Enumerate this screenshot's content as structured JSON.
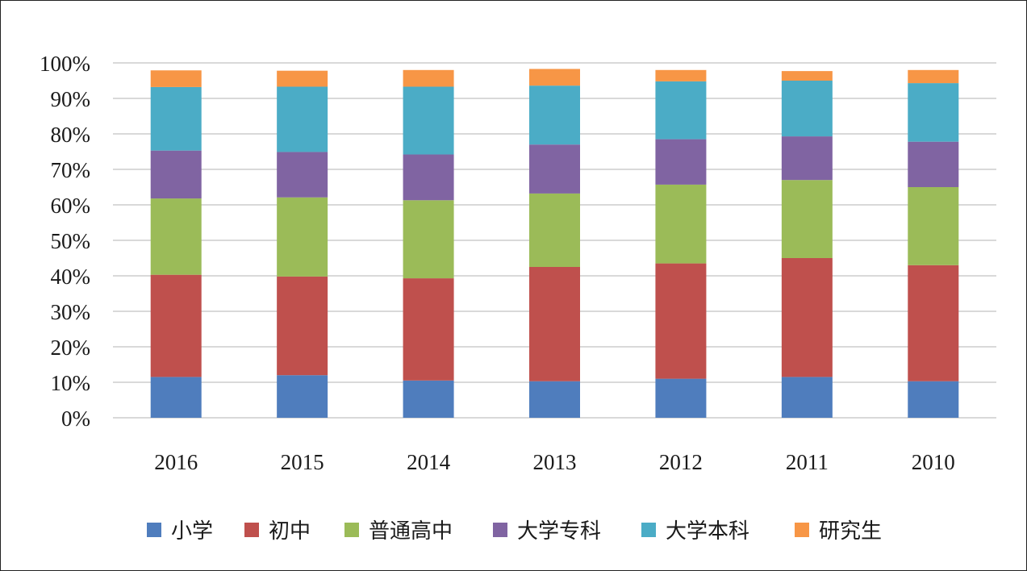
{
  "chart_data": {
    "type": "bar",
    "stacked": true,
    "categories": [
      "2016",
      "2015",
      "2014",
      "2013",
      "2012",
      "2011",
      "2010"
    ],
    "yticks": [
      "0%",
      "10%",
      "20%",
      "30%",
      "40%",
      "50%",
      "60%",
      "70%",
      "80%",
      "90%",
      "100%"
    ],
    "ylim": [
      0,
      100
    ],
    "grid": true,
    "legend_position": "bottom",
    "series": [
      {
        "name": "小学",
        "color": "#4f7dbd",
        "values": [
          11.5,
          12.0,
          10.5,
          10.3,
          11.0,
          11.5,
          10.3
        ]
      },
      {
        "name": "初中",
        "color": "#bf504d",
        "values": [
          28.8,
          27.8,
          28.8,
          32.2,
          32.5,
          33.5,
          32.7
        ]
      },
      {
        "name": "普通高中",
        "color": "#9bbb58",
        "values": [
          21.5,
          22.3,
          22.0,
          20.7,
          22.2,
          22.0,
          22.0
        ]
      },
      {
        "name": "大学专科",
        "color": "#8064a2",
        "values": [
          13.5,
          12.8,
          12.9,
          13.8,
          12.8,
          12.3,
          12.8
        ]
      },
      {
        "name": "大学本科",
        "color": "#4bacc6",
        "values": [
          17.9,
          18.4,
          19.1,
          16.6,
          16.3,
          15.7,
          16.5
        ]
      },
      {
        "name": "研究生",
        "color": "#f79646",
        "values": [
          4.7,
          4.5,
          4.7,
          4.7,
          3.2,
          2.7,
          3.7
        ]
      }
    ]
  }
}
